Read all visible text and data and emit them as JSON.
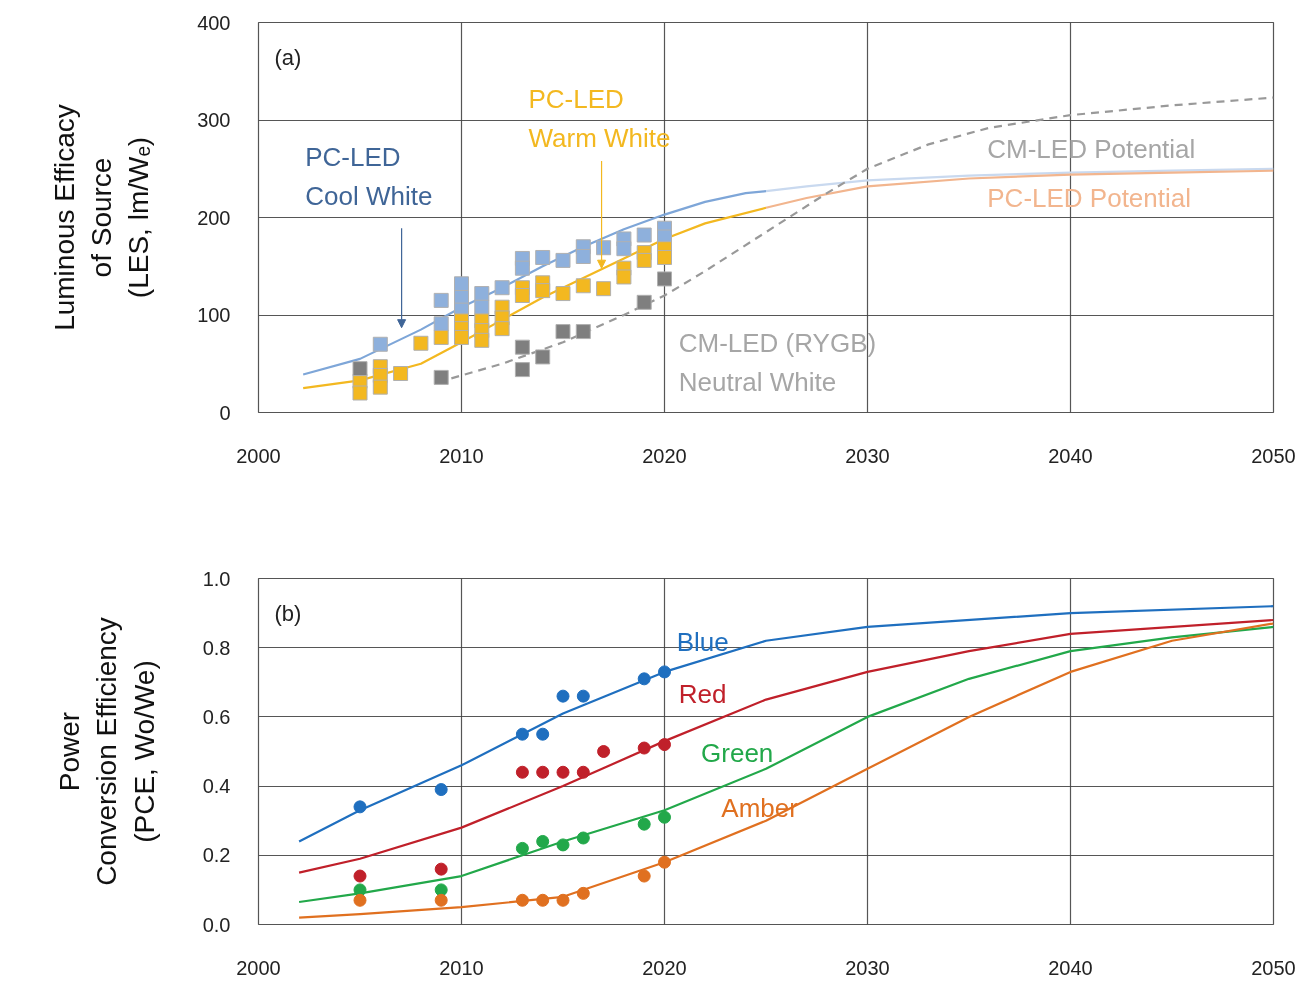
{
  "chart_data": [
    {
      "type": "line",
      "ylabel": "Luminous Efficacy\nof Source\n(LES, lm/Wₑ)",
      "xlim": [
        2000,
        2050
      ],
      "ylim": [
        0,
        400
      ],
      "xticks": [
        2000,
        2010,
        2020,
        2030,
        2040,
        2050
      ],
      "yticks": [
        0,
        100,
        200,
        300,
        400
      ],
      "grid": true,
      "annotations": [
        "(a)"
      ],
      "series": [
        {
          "color": "#c9d9ef",
          "x": [
            2025,
            2027,
            2030,
            2035,
            2040,
            2045,
            2050
          ],
          "values": [
            227,
            232,
            238,
            243,
            246,
            248,
            250
          ]
        },
        {
          "name": "PC-LED Potential",
          "color": "#f2b58e",
          "x": [
            2025,
            2027,
            2030,
            2035,
            2040,
            2045,
            2050
          ],
          "values": [
            210,
            220,
            232,
            240,
            244,
            246,
            248
          ]
        },
        {
          "name": "CM-LED Potential",
          "line_style": "dashed",
          "color": "#999999",
          "x": [
            2009.5,
            2012,
            2015,
            2018,
            2020,
            2022,
            2025,
            2028,
            2030,
            2033,
            2036,
            2040,
            2045,
            2050
          ],
          "values": [
            35,
            50,
            72,
            100,
            120,
            145,
            185,
            225,
            250,
            275,
            292,
            305,
            315,
            323
          ]
        },
        {
          "color": "#7ea6d8",
          "x": [
            2002.2,
            2005,
            2008,
            2010,
            2012,
            2014,
            2016,
            2018,
            2020,
            2022,
            2024,
            2025
          ],
          "values": [
            39,
            55,
            85,
            108,
            128,
            150,
            170,
            188,
            203,
            216,
            225,
            227
          ]
        },
        {
          "color": "#f3b820",
          "x": [
            2002.2,
            2005,
            2008,
            2010,
            2012,
            2014,
            2016,
            2018,
            2020,
            2022,
            2025
          ],
          "values": [
            25,
            33,
            50,
            72,
            95,
            118,
            138,
            158,
            178,
            194,
            210
          ]
        },
        {
          "name": "PC-LED\nCool White",
          "type": "scatter",
          "marker": "square",
          "color": "#8eb0dc",
          "x": [
            2006,
            2009,
            2009,
            2010,
            2010,
            2010,
            2011,
            2011,
            2012,
            2013,
            2013,
            2014,
            2015,
            2016,
            2016,
            2017,
            2018,
            2018,
            2019,
            2020,
            2020
          ],
          "values": [
            70,
            115,
            91,
            132,
            118,
            105,
            122,
            108,
            128,
            158,
            148,
            159,
            156,
            170,
            160,
            169,
            178,
            168,
            182,
            189,
            180
          ]
        },
        {
          "name": "PC-LED\nWarm White",
          "type": "scatter",
          "marker": "square",
          "color": "#f3b820",
          "x": [
            2005,
            2005,
            2006,
            2006,
            2006,
            2007,
            2008,
            2009,
            2010,
            2010,
            2010,
            2011,
            2011,
            2011,
            2012,
            2012,
            2012,
            2013,
            2013,
            2014,
            2014,
            2015,
            2016,
            2017,
            2018,
            2018,
            2019,
            2019,
            2020,
            2020
          ],
          "values": [
            32,
            20,
            47,
            38,
            26,
            40,
            71,
            77,
            94,
            86,
            77,
            94,
            84,
            74,
            108,
            97,
            86,
            128,
            120,
            133,
            125,
            122,
            130,
            127,
            148,
            139,
            164,
            156,
            168,
            159
          ]
        },
        {
          "name": "CM-LED (RYGB)\nNeutral White",
          "type": "scatter",
          "marker": "square",
          "color": "#7f7f7f",
          "x": [
            2005,
            2009,
            2013,
            2013,
            2014,
            2015,
            2016,
            2019,
            2020
          ],
          "values": [
            45,
            36,
            67,
            44,
            57,
            83,
            83,
            113,
            137
          ]
        }
      ]
    },
    {
      "type": "line",
      "ylabel": "Power\nConversion Efficiency\n(PCE, Wo/We)",
      "xlim": [
        2000,
        2050
      ],
      "ylim": [
        0,
        1
      ],
      "xticks": [
        2000,
        2010,
        2020,
        2030,
        2040,
        2050
      ],
      "yticks": [
        {
          "value": 0,
          "label": "0.0"
        },
        {
          "value": 0.2,
          "label": "0.2"
        },
        {
          "value": 0.4,
          "label": "0.4"
        },
        {
          "value": 0.6,
          "label": "0.6"
        },
        {
          "value": 0.8,
          "label": "0.8"
        },
        {
          "value": 1,
          "label": "1.0"
        }
      ],
      "grid": true,
      "annotations": [
        "(b)"
      ],
      "series": [
        {
          "name": "Blue",
          "color": "#1f6fbf",
          "x": [
            2002,
            2005,
            2010,
            2013,
            2015,
            2020,
            2025,
            2030,
            2040,
            2050
          ],
          "values": [
            0.24,
            0.33,
            0.46,
            0.55,
            0.61,
            0.73,
            0.82,
            0.86,
            0.9,
            0.92
          ]
        },
        {
          "name": "Red",
          "color": "#c0202a",
          "x": [
            2002,
            2005,
            2010,
            2015,
            2020,
            2025,
            2030,
            2035,
            2040,
            2050
          ],
          "values": [
            0.15,
            0.19,
            0.28,
            0.4,
            0.53,
            0.65,
            0.73,
            0.79,
            0.84,
            0.88
          ]
        },
        {
          "name": "Green",
          "color": "#22a84a",
          "x": [
            2002,
            2005,
            2010,
            2013,
            2015,
            2020,
            2025,
            2030,
            2035,
            2040,
            2045,
            2050
          ],
          "values": [
            0.065,
            0.09,
            0.14,
            0.2,
            0.24,
            0.33,
            0.45,
            0.6,
            0.71,
            0.79,
            0.83,
            0.86
          ]
        },
        {
          "name": "Amber",
          "color": "#e07020",
          "x": [
            2002,
            2005,
            2010,
            2015,
            2020,
            2025,
            2030,
            2035,
            2040,
            2045,
            2050
          ],
          "values": [
            0.02,
            0.03,
            0.05,
            0.08,
            0.18,
            0.3,
            0.45,
            0.6,
            0.73,
            0.82,
            0.87
          ]
        },
        {
          "type": "scatter",
          "marker": "circle",
          "color": "#1f6fbf",
          "x": [
            2005,
            2009,
            2013,
            2014,
            2015,
            2016,
            2019,
            2020
          ],
          "values": [
            0.34,
            0.39,
            0.55,
            0.55,
            0.66,
            0.66,
            0.71,
            0.73
          ]
        },
        {
          "type": "scatter",
          "marker": "circle",
          "color": "#c0202a",
          "x": [
            2005,
            2009,
            2013,
            2014,
            2015,
            2016,
            2017,
            2019,
            2020
          ],
          "values": [
            0.14,
            0.16,
            0.44,
            0.44,
            0.44,
            0.44,
            0.5,
            0.51,
            0.52
          ]
        },
        {
          "type": "scatter",
          "marker": "circle",
          "color": "#22a84a",
          "x": [
            2005,
            2009,
            2013,
            2014,
            2015,
            2016,
            2019,
            2020
          ],
          "values": [
            0.1,
            0.1,
            0.22,
            0.24,
            0.23,
            0.25,
            0.29,
            0.31
          ]
        },
        {
          "type": "scatter",
          "marker": "circle",
          "color": "#e07020",
          "x": [
            2005,
            2009,
            2013,
            2014,
            2015,
            2016,
            2019,
            2020
          ],
          "values": [
            0.07,
            0.07,
            0.07,
            0.07,
            0.07,
            0.09,
            0.14,
            0.18
          ]
        }
      ]
    }
  ]
}
